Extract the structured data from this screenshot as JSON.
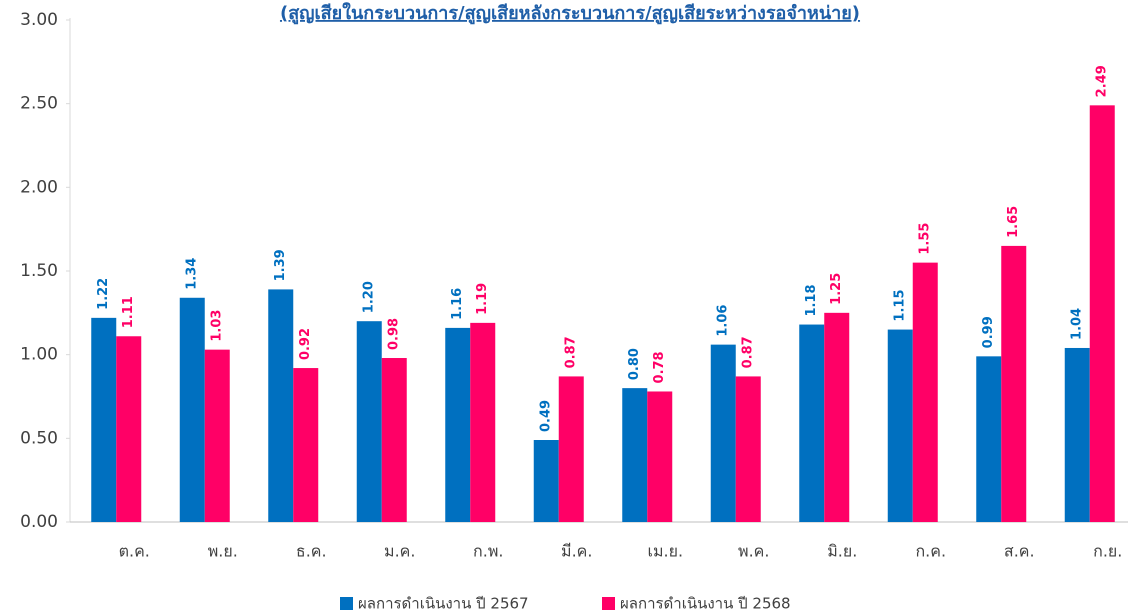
{
  "chart_data": {
    "type": "bar",
    "title": "(สูญเสียในกระบวนการ/สูญเสียหลังกระบวนการ/สูญเสียระหว่างรอจำหน่าย)",
    "categories": [
      "ต.ค.",
      "พ.ย.",
      "ธ.ค.",
      "ม.ค.",
      "ก.พ.",
      "มี.ค.",
      "เม.ย.",
      "พ.ค.",
      "มิ.ย.",
      "ก.ค.",
      "ส.ค.",
      "ก.ย."
    ],
    "series": [
      {
        "name": "ผลการดำเนินงาน ปี 2567",
        "color": "#0070c0",
        "values": [
          1.22,
          1.34,
          1.39,
          1.2,
          1.16,
          0.49,
          0.8,
          1.06,
          1.18,
          1.15,
          0.99,
          1.04
        ],
        "value_labels": [
          "1.22",
          "1.34",
          "1.39",
          "1.20",
          "1.16",
          "0.49",
          "0.80",
          "1.06",
          "1.18",
          "1.15",
          "0.99",
          "1.04"
        ]
      },
      {
        "name": "ผลการดำเนินงาน ปี 2568",
        "color": "#ff0066",
        "values": [
          1.11,
          1.03,
          0.92,
          0.98,
          1.19,
          0.87,
          0.78,
          0.87,
          1.25,
          1.55,
          1.65,
          2.49
        ],
        "value_labels": [
          "1.11",
          "1.03",
          "0.92",
          "0.98",
          "1.19",
          "0.87",
          "0.78",
          "0.87",
          "1.25",
          "1.55",
          "1.65",
          "2.49"
        ]
      }
    ],
    "ylim": [
      0,
      3
    ],
    "yticks": [
      {
        "value": 0,
        "label": "0.00"
      },
      {
        "value": 0.5,
        "label": "0.50"
      },
      {
        "value": 1,
        "label": "1.00"
      },
      {
        "value": 1.5,
        "label": "1.50"
      },
      {
        "value": 2,
        "label": "2.00"
      },
      {
        "value": 2.5,
        "label": "2.50"
      },
      {
        "value": 3,
        "label": "3.00"
      }
    ],
    "grid": false,
    "legend": "bottom"
  }
}
